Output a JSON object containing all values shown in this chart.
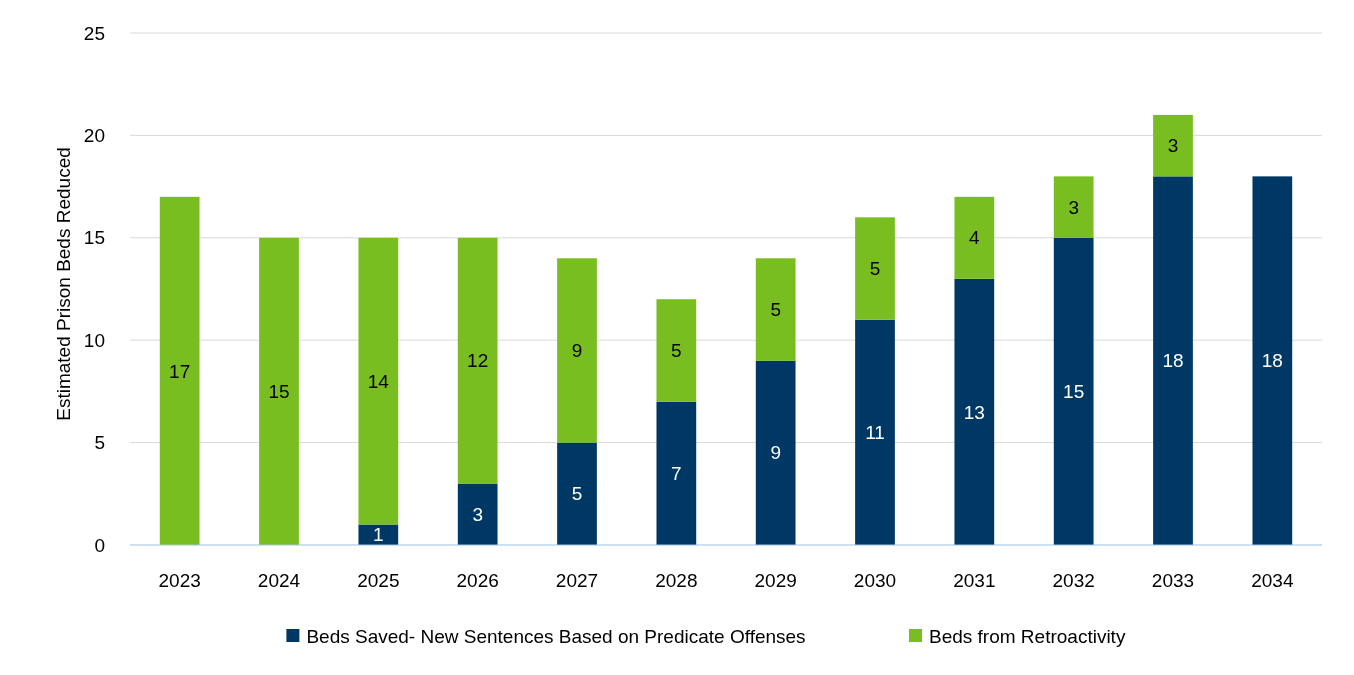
{
  "chart_data": {
    "type": "bar",
    "ylabel": "Estimated Prison Beds Reduced",
    "categories": [
      "2023",
      "2024",
      "2025",
      "2026",
      "2027",
      "2028",
      "2029",
      "2030",
      "2031",
      "2032",
      "2033",
      "2034"
    ],
    "series": [
      {
        "name": "Beds Saved- New Sentences Based on Predicate Offenses",
        "color": "#003865",
        "values": [
          null,
          null,
          1,
          3,
          5,
          7,
          9,
          11,
          13,
          15,
          18,
          18
        ]
      },
      {
        "name": "Beds from Retroactivity",
        "color": "#78be20",
        "values": [
          17,
          15,
          14,
          12,
          9,
          5,
          5,
          5,
          4,
          3,
          3,
          null
        ]
      }
    ],
    "stacked": true,
    "ylim": [
      0,
      25
    ],
    "yticks": [
      0,
      5,
      10,
      15,
      20,
      25
    ],
    "grid": "y",
    "legend": "bottom",
    "data_labels": true
  }
}
